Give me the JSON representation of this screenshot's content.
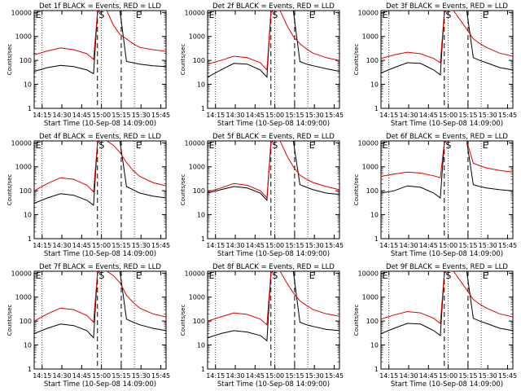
{
  "chart_data": {
    "type": "line",
    "common": {
      "xlabel": "Start Time (10-Sep-08 14:09:00)",
      "ylabel": "Counts/sec",
      "x_ticks": [
        "14:15",
        "14:30",
        "14:45",
        "15:00",
        "15:15",
        "15:30",
        "15:45"
      ],
      "y_ticks": [
        "1",
        "10",
        "100",
        "1000",
        "10000"
      ],
      "y_scale": "log",
      "ylim": [
        1,
        12000
      ],
      "xlim": [
        "14:09",
        "15:49"
      ],
      "grid": "dotted verticals at 14:15, 15:00, 15:25",
      "markers": [
        "E",
        "S",
        "E"
      ],
      "colors": {
        "events": "#000000",
        "lld": "#dd0000"
      }
    },
    "panels": [
      {
        "title": "Det 1f BLACK = Events, RED = LLD",
        "series": [
          {
            "name": "Events",
            "color": "#000000",
            "t": [
              0,
              10,
              20,
              30,
              40,
              45,
              48,
              50,
              52,
              55,
              60,
              65,
              70,
              75,
              80,
              90,
              100
            ],
            "y": [
              35,
              50,
              62,
              55,
              40,
              28,
              10000,
              12000,
              12000,
              12000,
              12000,
              12000,
              90,
              80,
              70,
              60,
              55
            ]
          },
          {
            "name": "LLD",
            "color": "#dd0000",
            "t": [
              0,
              10,
              20,
              30,
              40,
              45,
              48,
              50,
              52,
              55,
              60,
              65,
              70,
              75,
              80,
              90,
              100
            ],
            "y": [
              170,
              250,
              330,
              280,
              190,
              110,
              10000,
              12000,
              12000,
              12000,
              3000,
              1200,
              800,
              500,
              350,
              280,
              240
            ]
          }
        ]
      },
      {
        "title": "Det 2f BLACK = Events, RED = LLD",
        "series": [
          {
            "name": "Events",
            "color": "#000000",
            "t": [
              0,
              10,
              20,
              30,
              40,
              45,
              48,
              50,
              52,
              55,
              60,
              65,
              70,
              75,
              80,
              90,
              100
            ],
            "y": [
              20,
              40,
              75,
              70,
              40,
              20,
              10000,
              12000,
              12000,
              12000,
              12000,
              12000,
              90,
              70,
              60,
              45,
              35
            ]
          },
          {
            "name": "LLD",
            "color": "#dd0000",
            "t": [
              0,
              10,
              20,
              30,
              40,
              45,
              48,
              50,
              52,
              55,
              60,
              65,
              70,
              75,
              80,
              90,
              100
            ],
            "y": [
              70,
              100,
              150,
              130,
              80,
              40,
              10000,
              12000,
              12000,
              12000,
              3000,
              1000,
              500,
              300,
              200,
              130,
              100
            ]
          }
        ]
      },
      {
        "title": "Det 3f BLACK = Events, RED = LLD",
        "series": [
          {
            "name": "Events",
            "color": "#000000",
            "t": [
              0,
              10,
              20,
              30,
              40,
              45,
              48,
              50,
              52,
              55,
              60,
              65,
              70,
              75,
              80,
              90,
              100
            ],
            "y": [
              30,
              50,
              80,
              75,
              40,
              25,
              10000,
              12000,
              12000,
              12000,
              12000,
              12000,
              130,
              100,
              80,
              50,
              40
            ]
          },
          {
            "name": "LLD",
            "color": "#dd0000",
            "t": [
              0,
              10,
              20,
              30,
              40,
              45,
              48,
              50,
              52,
              55,
              60,
              65,
              70,
              75,
              80,
              90,
              100
            ],
            "y": [
              120,
              170,
              220,
              190,
              120,
              80,
              10000,
              12000,
              12000,
              12000,
              5000,
              2000,
              800,
              500,
              350,
              200,
              150
            ]
          }
        ]
      },
      {
        "title": "Det 4f BLACK = Events, RED = LLD",
        "series": [
          {
            "name": "Events",
            "color": "#000000",
            "t": [
              0,
              10,
              20,
              30,
              40,
              45,
              48,
              50,
              52,
              55,
              60,
              65,
              70,
              75,
              80,
              90,
              100
            ],
            "y": [
              30,
              50,
              75,
              65,
              40,
              25,
              10000,
              12000,
              12000,
              12000,
              12000,
              12000,
              150,
              110,
              80,
              60,
              50
            ]
          },
          {
            "name": "LLD",
            "color": "#dd0000",
            "t": [
              0,
              10,
              20,
              30,
              40,
              45,
              48,
              50,
              52,
              55,
              60,
              65,
              70,
              75,
              80,
              90,
              100
            ],
            "y": [
              100,
              200,
              350,
              300,
              170,
              90,
              10000,
              12000,
              12000,
              12000,
              8000,
              4000,
              1500,
              700,
              400,
              220,
              160
            ]
          }
        ]
      },
      {
        "title": "Det 5f BLACK = Events, RED = LLD",
        "series": [
          {
            "name": "Events",
            "color": "#000000",
            "t": [
              0,
              10,
              20,
              30,
              40,
              45,
              48,
              50,
              52,
              55,
              60,
              65,
              70,
              75,
              80,
              90,
              100
            ],
            "y": [
              80,
              110,
              150,
              130,
              80,
              40,
              10000,
              12000,
              12000,
              12000,
              12000,
              12000,
              180,
              140,
              110,
              80,
              70
            ]
          },
          {
            "name": "LLD",
            "color": "#dd0000",
            "t": [
              0,
              10,
              20,
              30,
              40,
              45,
              48,
              50,
              52,
              55,
              60,
              65,
              70,
              75,
              80,
              90,
              100
            ],
            "y": [
              90,
              130,
              200,
              170,
              100,
              50,
              10000,
              12000,
              12000,
              12000,
              3000,
              1000,
              450,
              300,
              220,
              150,
              110
            ]
          }
        ]
      },
      {
        "title": "Det 6f BLACK = Events, RED = LLD",
        "series": [
          {
            "name": "Events",
            "color": "#000000",
            "t": [
              0,
              10,
              20,
              30,
              40,
              45,
              48,
              50,
              52,
              55,
              60,
              65,
              70,
              75,
              80,
              90,
              100
            ],
            "y": [
              80,
              100,
              160,
              140,
              80,
              50,
              10000,
              12000,
              12000,
              12000,
              12000,
              12000,
              180,
              150,
              130,
              110,
              100
            ]
          },
          {
            "name": "LLD",
            "color": "#dd0000",
            "t": [
              0,
              10,
              20,
              30,
              40,
              45,
              48,
              50,
              52,
              55,
              60,
              65,
              70,
              75,
              80,
              90,
              100
            ],
            "y": [
              400,
              500,
              600,
              550,
              420,
              350,
              10000,
              12000,
              12000,
              12000,
              12000,
              12000,
              1400,
              1100,
              900,
              700,
              600
            ]
          }
        ]
      },
      {
        "title": "Det 7f BLACK = Events, RED = LLD",
        "series": [
          {
            "name": "Events",
            "color": "#000000",
            "t": [
              0,
              10,
              20,
              30,
              40,
              45,
              48,
              50,
              52,
              55,
              60,
              65,
              70,
              75,
              80,
              90,
              100
            ],
            "y": [
              30,
              50,
              75,
              65,
              40,
              20,
              10000,
              12000,
              12000,
              12000,
              12000,
              12000,
              120,
              90,
              70,
              50,
              40
            ]
          },
          {
            "name": "LLD",
            "color": "#dd0000",
            "t": [
              0,
              10,
              20,
              30,
              40,
              45,
              48,
              50,
              52,
              55,
              60,
              65,
              70,
              75,
              80,
              90,
              100
            ],
            "y": [
              100,
              200,
              350,
              300,
              170,
              90,
              10000,
              12000,
              12000,
              12000,
              8000,
              4000,
              1200,
              600,
              350,
              200,
              150
            ]
          }
        ]
      },
      {
        "title": "Det 8f BLACK = Events, RED = LLD",
        "series": [
          {
            "name": "Events",
            "color": "#000000",
            "t": [
              0,
              10,
              20,
              30,
              40,
              45,
              48,
              50,
              52,
              55,
              60,
              65,
              70,
              75,
              80,
              90,
              100
            ],
            "y": [
              20,
              30,
              40,
              35,
              25,
              15,
              10000,
              12000,
              12000,
              12000,
              12000,
              12000,
              90,
              70,
              60,
              45,
              40
            ]
          },
          {
            "name": "LLD",
            "color": "#dd0000",
            "t": [
              0,
              10,
              20,
              30,
              40,
              45,
              48,
              50,
              52,
              55,
              60,
              65,
              70,
              75,
              80,
              90,
              100
            ],
            "y": [
              100,
              150,
              220,
              190,
              120,
              70,
              10000,
              12000,
              12000,
              12000,
              4000,
              1500,
              700,
              450,
              300,
              200,
              160
            ]
          }
        ]
      },
      {
        "title": "Det 9f BLACK = Events, RED = LLD",
        "series": [
          {
            "name": "Events",
            "color": "#000000",
            "t": [
              0,
              10,
              20,
              30,
              40,
              45,
              48,
              50,
              52,
              55,
              60,
              65,
              70,
              75,
              80,
              90,
              100
            ],
            "y": [
              30,
              50,
              80,
              75,
              40,
              25,
              10000,
              12000,
              12000,
              12000,
              12000,
              12000,
              130,
              100,
              80,
              50,
              40
            ]
          },
          {
            "name": "LLD",
            "color": "#dd0000",
            "t": [
              0,
              10,
              20,
              30,
              40,
              45,
              48,
              50,
              52,
              55,
              60,
              65,
              70,
              75,
              80,
              90,
              100
            ],
            "y": [
              120,
              180,
              250,
              220,
              130,
              80,
              10000,
              12000,
              12000,
              12000,
              5000,
              2000,
              800,
              500,
              350,
              200,
              150
            ]
          }
        ]
      }
    ]
  }
}
